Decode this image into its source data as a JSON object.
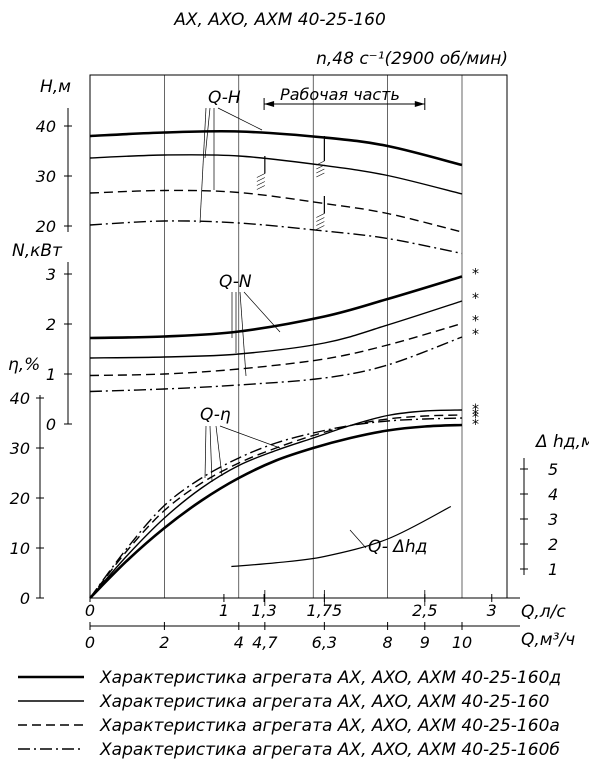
{
  "chart_data": {
    "type": "line",
    "title": "AX, AXO, AXM 40-25-160",
    "subtitle": "n,48 c⁻¹(2900 об/мин)",
    "working_range_label": "Рабочая часть",
    "x_axis_q_ls": {
      "label": "Q,л/с",
      "ticks": [
        "0",
        "1",
        "1,3",
        "1,75",
        "2,5",
        "3"
      ]
    },
    "x_axis_q_m3h": {
      "label": "Q,м³/ч",
      "ticks": [
        "0",
        "2",
        "4",
        "4,7",
        "6,3",
        "8",
        "9",
        "10"
      ]
    },
    "axes": {
      "head": {
        "label": "H,м",
        "ticks": [
          "20",
          "30",
          "40"
        ],
        "ylim": [
          17,
          48
        ]
      },
      "power": {
        "label": "N,кВт",
        "ticks": [
          "0",
          "1",
          "2",
          "3"
        ],
        "ylim": [
          0,
          3.6
        ]
      },
      "efficiency": {
        "label": "η,%",
        "ticks": [
          "0",
          "10",
          "20",
          "30",
          "40"
        ],
        "ylim": [
          0,
          44
        ]
      },
      "npsh": {
        "label": "Δ hд,м",
        "ticks": [
          "1",
          "2",
          "3",
          "4",
          "5"
        ],
        "ylim": [
          1,
          5
        ]
      }
    },
    "curve_labels": {
      "head": "Q-H",
      "power": "Q-N",
      "efficiency": "Q-η",
      "npsh": "Q- Δhд"
    },
    "series": [
      {
        "name": "Характеристика агрегата AX, AXO, AXM 40-25-160д",
        "style": "thick",
        "head": {
          "x": [
            0,
            2,
            4,
            6.3,
            8,
            10
          ],
          "y": [
            38.0,
            38.7,
            38.9,
            37.7,
            36.0,
            32.2
          ]
        },
        "power": {
          "x": [
            0,
            2,
            4,
            6.3,
            8,
            10
          ],
          "y": [
            1.72,
            1.75,
            1.85,
            2.15,
            2.5,
            2.95
          ]
        },
        "efficiency": {
          "x": [
            0,
            1,
            2,
            3,
            4,
            5,
            6,
            7,
            8,
            9,
            10
          ],
          "y": [
            0,
            7.5,
            14,
            19.5,
            24,
            27.5,
            30,
            32,
            33.5,
            34.3,
            34.6
          ]
        }
      },
      {
        "name": "Характеристика агрегата AX, AXO, AXM 40-25-160",
        "style": "thin",
        "head": {
          "x": [
            0,
            2,
            4,
            6.3,
            8,
            10
          ],
          "y": [
            33.6,
            34.2,
            34.0,
            32.1,
            30.1,
            26.4
          ]
        },
        "power": {
          "x": [
            0,
            2,
            4,
            6.3,
            8,
            10
          ],
          "y": [
            1.32,
            1.34,
            1.4,
            1.62,
            1.98,
            2.46
          ]
        },
        "efficiency": {
          "x": [
            0,
            1,
            2,
            3,
            4,
            5,
            6,
            7,
            8,
            9,
            10
          ],
          "y": [
            0,
            8.5,
            16,
            22,
            26.5,
            29.5,
            32,
            34.5,
            36.5,
            37.4,
            37.6
          ]
        }
      },
      {
        "name": "Характеристика агрегата AX, AXO, AXM 40-25-160а",
        "style": "dashed",
        "head": {
          "x": [
            0,
            2,
            4,
            6.3,
            8,
            10
          ],
          "y": [
            26.6,
            27.1,
            26.7,
            24.5,
            22.5,
            18.8
          ]
        },
        "power": {
          "x": [
            0,
            2,
            4,
            6.3,
            8,
            10
          ],
          "y": [
            0.97,
            1.0,
            1.1,
            1.3,
            1.58,
            2.01
          ]
        },
        "efficiency": {
          "x": [
            0,
            1,
            2,
            3,
            4,
            5,
            6,
            7,
            8,
            9,
            10
          ],
          "y": [
            0,
            9.5,
            17.5,
            23,
            27,
            30,
            32.5,
            34.5,
            35.8,
            36.4,
            36.6
          ]
        }
      },
      {
        "name": "Характеристика агрегата AX, AXO, AXM 40-25-160б",
        "style": "dashdot",
        "head": {
          "x": [
            0,
            2,
            4,
            6.3,
            8,
            10
          ],
          "y": [
            20.2,
            21.0,
            20.6,
            19.0,
            17.5,
            14.5
          ]
        },
        "power": {
          "x": [
            0,
            2,
            4,
            6.3,
            8,
            10
          ],
          "y": [
            0.65,
            0.7,
            0.78,
            0.92,
            1.18,
            1.74
          ]
        },
        "efficiency": {
          "x": [
            0,
            1,
            2,
            3,
            4,
            5,
            6,
            7,
            8,
            9,
            10
          ],
          "y": [
            0,
            10,
            18.5,
            24,
            28,
            31,
            33,
            34.5,
            35.4,
            35.8,
            36.0
          ]
        }
      }
    ],
    "npsh_curve": {
      "x": [
        3.8,
        5,
        6.3,
        8,
        9.7
      ],
      "y": [
        1.1,
        1.25,
        1.5,
        2.2,
        3.5
      ]
    },
    "legend": [
      {
        "style": "thick",
        "label": "Характеристика агрегата AX, AXO, AXM 40-25-160д"
      },
      {
        "style": "thin",
        "label": "Характеристика агрегата AX, AXO, AXM 40-25-160"
      },
      {
        "style": "dashed",
        "label": "Характеристика агрегата AX, AXO, AXM 40-25-160а"
      },
      {
        "style": "dashdot",
        "label": "Характеристика агрегата AX, AXO, AXM 40-25-160б"
      }
    ],
    "legend_placement": "bottom",
    "grid": true
  }
}
